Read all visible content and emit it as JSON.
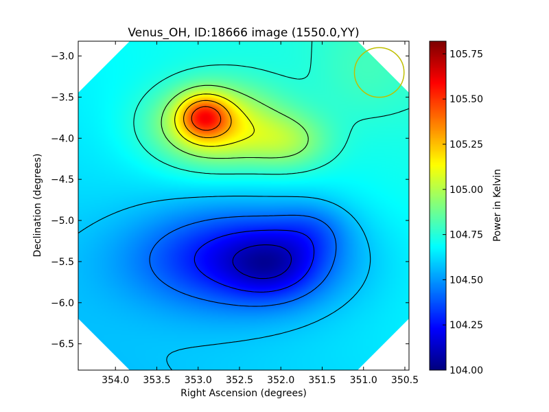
{
  "chart_data": {
    "type": "heatmap",
    "title": "Venus_OH, ID:18666 image (1550.0,YY)",
    "xlabel": "Right Ascension (degrees)",
    "ylabel": "Declination (degrees)",
    "colorbar_label": "Power in Kelvin",
    "colormap": "jet",
    "xlim": [
      354.45,
      350.45
    ],
    "ylim": [
      -6.82,
      -2.82
    ],
    "x_ticks": [
      354.0,
      353.5,
      353.0,
      352.5,
      352.0,
      351.5,
      351.0,
      350.5
    ],
    "x_tick_labels": [
      "354.0",
      "353.5",
      "353.0",
      "352.5",
      "352.0",
      "351.5",
      "351.0",
      "350.5"
    ],
    "y_ticks": [
      -3.0,
      -3.5,
      -4.0,
      -4.5,
      -5.0,
      -5.5,
      -6.0,
      -6.5
    ],
    "y_tick_labels": [
      "−3.0",
      "−3.5",
      "−4.0",
      "−4.5",
      "−5.0",
      "−5.5",
      "−6.0",
      "−6.5"
    ],
    "colorbar_range": [
      104.0,
      105.82
    ],
    "colorbar_ticks": [
      104.0,
      104.25,
      104.5,
      104.75,
      105.0,
      105.25,
      105.5,
      105.75
    ],
    "colorbar_tick_labels": [
      "104.00",
      "104.25",
      "104.50",
      "104.75",
      "105.00",
      "105.25",
      "105.50",
      "105.75"
    ],
    "peaks": [
      {
        "kind": "maximum",
        "ra": 352.93,
        "dec": -3.73,
        "value": 105.82
      },
      {
        "kind": "minimum",
        "ra": 352.1,
        "dec": -5.55,
        "value": 104.0
      }
    ],
    "beam_circle": {
      "ra": 350.81,
      "dec": -3.2,
      "radius_deg": 0.3
    },
    "contour_levels": [
      104.12,
      104.27,
      104.42,
      104.58,
      104.75,
      104.92,
      105.1,
      105.28,
      105.45,
      105.62,
      105.76
    ],
    "grid": false
  },
  "colors": {
    "contour": "#000000",
    "beam": "#bfbf00",
    "background": "#ffffff"
  }
}
